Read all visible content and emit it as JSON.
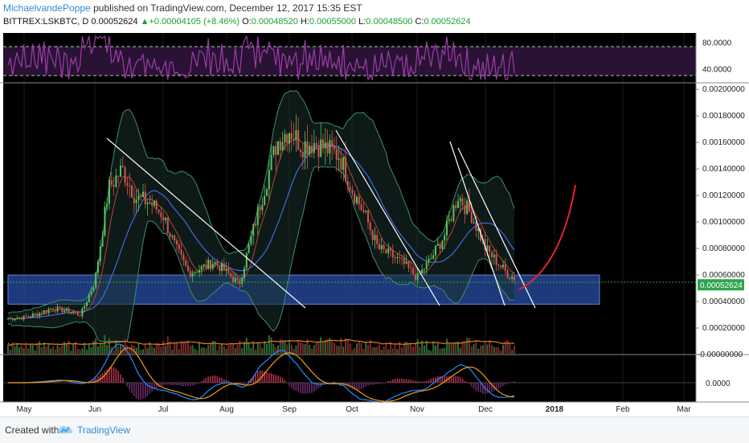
{
  "header": {
    "author": "MichaelvandePoppe",
    "published": "published on TradingView.com, December 12, 2017 15:35 EST",
    "symbol": "BITTREX:LSKBTC, D",
    "last": "0.00052624",
    "change_arrow": "▲",
    "change": "+0.00004105 (+8.46%)",
    "o_label": "O:",
    "o": "0.00048520",
    "h_label": "H:",
    "h": "0.00055000",
    "l_label": "L:",
    "l": "0.00048500",
    "c_label": "C:",
    "c": "0.00052624"
  },
  "colors": {
    "background": "#000000",
    "up_candle": "#5cc15a",
    "down_candle": "#d9534f",
    "rsi": "#9b3ea8",
    "support_zone": "#2a4ea6",
    "arrow": "#e0242a",
    "last_price_tag": "#2ea44f"
  },
  "chart_data": {
    "type": "candlestick",
    "title": "",
    "x_axis_labels": [
      "May",
      "Jun",
      "Jul",
      "Aug",
      "Sep",
      "Oct",
      "Nov",
      "Dec",
      "2018",
      "Feb",
      "Mar"
    ],
    "price_axis": {
      "tick_labels": [
        "0.00200000",
        "0.00180000",
        "0.00160000",
        "0.00140000",
        "0.00120000",
        "0.00100000",
        "0.00080000",
        "0.00060000",
        "0.00040000",
        "0.00020000",
        "-0.00000000"
      ],
      "range": [
        0,
        0.00205
      ],
      "last_price_label": "0.00052624"
    },
    "rsi_axis": {
      "tick_labels": [
        "80.0000",
        "40.0000"
      ],
      "range": [
        20,
        95
      ],
      "bands": [
        70,
        30
      ]
    },
    "macd_axis": {
      "tick_labels": [
        "0.0000"
      ]
    },
    "support_zone": [
      0.00038,
      0.0006
    ],
    "close_series_by_month": [
      {
        "month": "May",
        "values": [
          0.00028,
          0.00031,
          0.00035,
          0.00033,
          0.0003
        ]
      },
      {
        "month": "Jun",
        "values": [
          0.00055,
          0.00125,
          0.0014,
          0.00118,
          0.00115
        ]
      },
      {
        "month": "Jul",
        "values": [
          0.00105,
          0.0008,
          0.00062,
          0.00065,
          0.0007
        ]
      },
      {
        "month": "Aug",
        "values": [
          0.00062,
          0.00053,
          0.0009,
          0.00125,
          0.0016
        ]
      },
      {
        "month": "Sep",
        "values": [
          0.0017,
          0.00158,
          0.0016,
          0.00155,
          0.0015
        ]
      },
      {
        "month": "Oct",
        "values": [
          0.00125,
          0.00105,
          0.0008,
          0.00075,
          0.00068
        ]
      },
      {
        "month": "Nov",
        "values": [
          0.00058,
          0.00072,
          0.0009,
          0.0012,
          0.00105
        ]
      },
      {
        "month": "Dec",
        "values": [
          0.0008,
          0.0006,
          0.00052624
        ]
      }
    ]
  },
  "footer": {
    "created": "Created with",
    "brand": "TradingView"
  }
}
